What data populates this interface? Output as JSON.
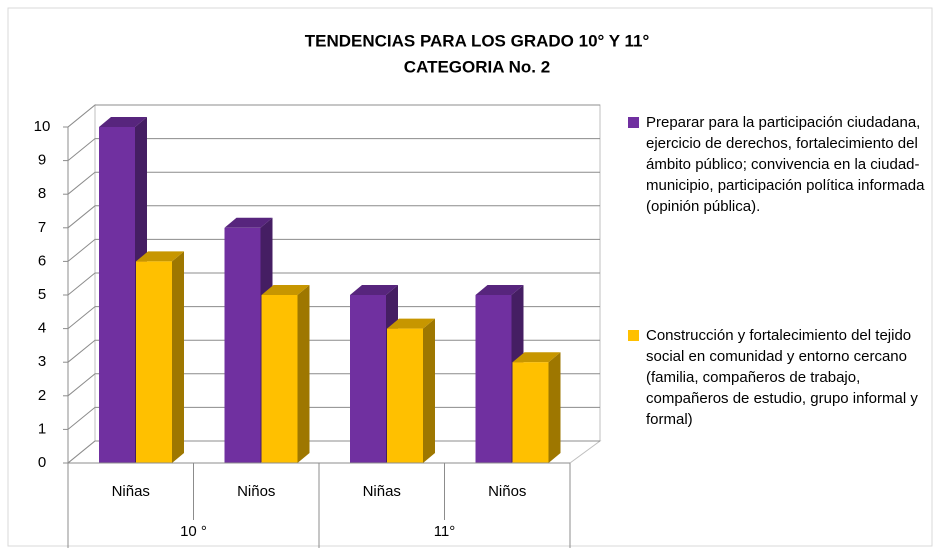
{
  "chart_data": {
    "type": "bar3d",
    "title": [
      "TENDENCIAS PARA LOS GRADO 10° Y 11°",
      "CATEGORIA No. 2"
    ],
    "categories": [
      "Niñas",
      "Niños",
      "Niñas",
      "Niños"
    ],
    "groups": [
      "10 °",
      "11°"
    ],
    "series": [
      {
        "name": "Preparar para la participación ciudadana, ejercicio de derechos, fortalecimiento del ámbito público; convivencia en la ciudad-municipio, participación política informada (opinión pública).",
        "color": "#7030a0",
        "values": [
          10,
          7,
          5,
          5
        ]
      },
      {
        "name": "Construcción y fortalecimiento del tejido social en comunidad y entorno cercano (familia, compañeros de trabajo, compañeros de estudio, grupo informal y formal)",
        "color": "#ffc000",
        "values": [
          6,
          5,
          4,
          3
        ]
      }
    ],
    "ylim": [
      0,
      10
    ],
    "yticks": [
      0,
      1,
      2,
      3,
      4,
      5,
      6,
      7,
      8,
      9,
      10
    ],
    "grid": true,
    "legend": "right"
  }
}
